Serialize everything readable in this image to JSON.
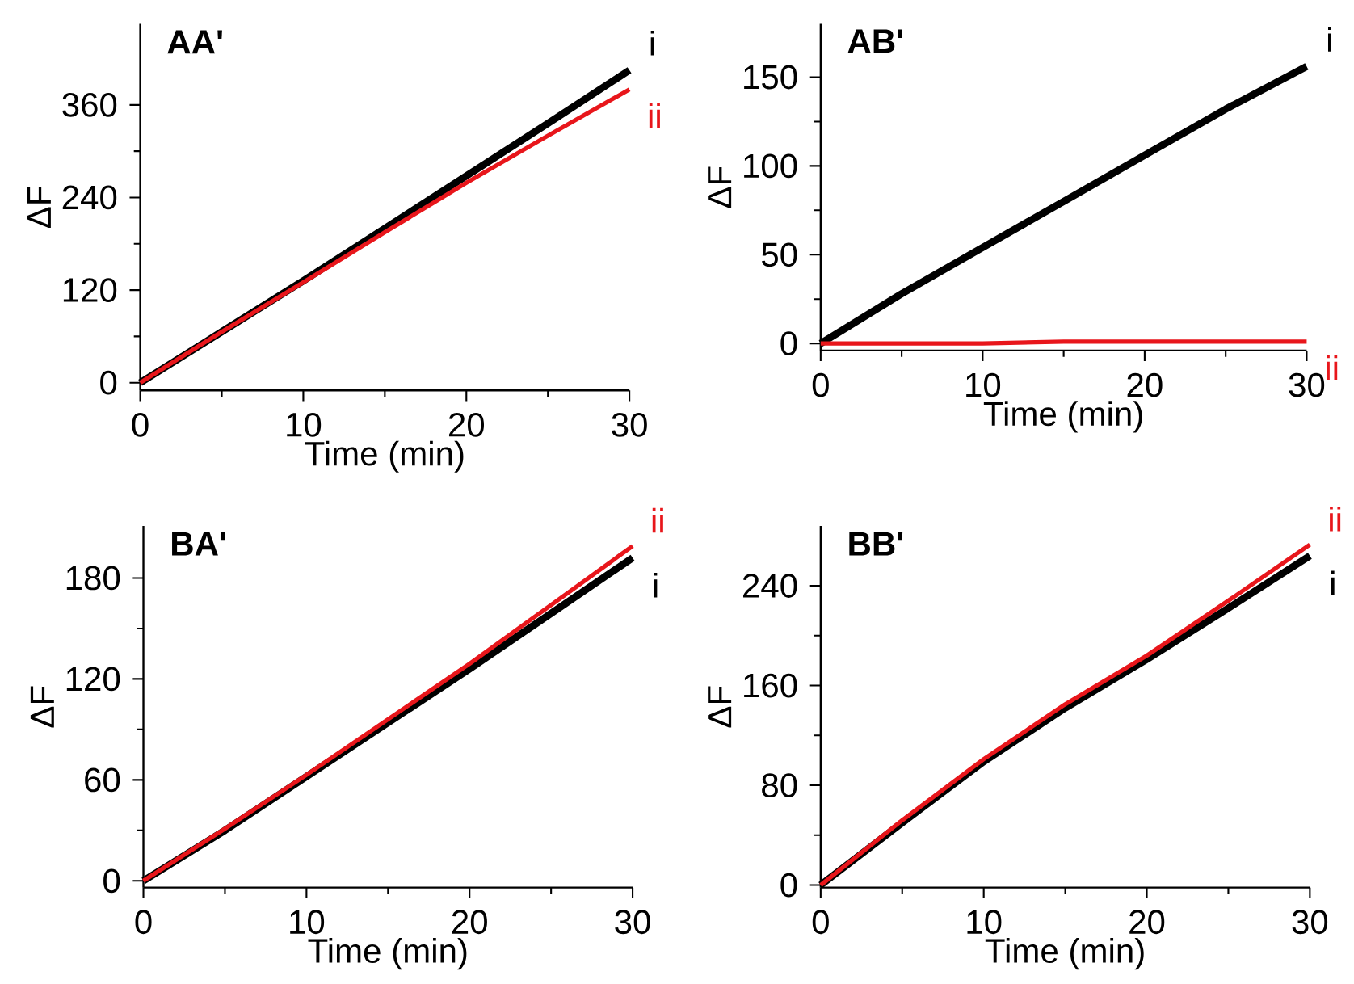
{
  "chart_data": [
    {
      "type": "line",
      "title": "AA'",
      "xlabel": "Time (min)",
      "ylabel": "ΔF",
      "x": [
        0,
        5,
        10,
        15,
        20,
        25,
        30
      ],
      "xlim": [
        0,
        30
      ],
      "ylim": [
        -10,
        465
      ],
      "xticks": [
        0,
        10,
        20,
        30
      ],
      "yticks": [
        0,
        120,
        240,
        360
      ],
      "series": [
        {
          "name": "i",
          "color": "#000000",
          "values": [
            0,
            66,
            132,
            200,
            268,
            336,
            405
          ]
        },
        {
          "name": "ii",
          "color": "#e8161b",
          "values": [
            0,
            66,
            130,
            195,
            259,
            320,
            380
          ]
        }
      ]
    },
    {
      "type": "line",
      "title": "AB'",
      "xlabel": "Time (min)",
      "ylabel": "ΔF",
      "x": [
        0,
        5,
        10,
        15,
        20,
        25,
        30
      ],
      "xlim": [
        0,
        30
      ],
      "ylim": [
        -4,
        180
      ],
      "xticks": [
        0,
        10,
        20,
        30
      ],
      "yticks": [
        0,
        50,
        100,
        150
      ],
      "series": [
        {
          "name": "i",
          "color": "#000000",
          "values": [
            0,
            28,
            54,
            80,
            106,
            132,
            156
          ]
        },
        {
          "name": "ii",
          "color": "#e8161b",
          "values": [
            0,
            0,
            0,
            1,
            1,
            1,
            1
          ]
        }
      ]
    },
    {
      "type": "line",
      "title": "BA'",
      "xlabel": "Time (min)",
      "ylabel": "ΔF",
      "x": [
        0,
        5,
        10,
        15,
        20,
        25,
        30
      ],
      "xlim": [
        0,
        30
      ],
      "ylim": [
        -4,
        211
      ],
      "xticks": [
        0,
        10,
        20,
        30
      ],
      "yticks": [
        0,
        60,
        120,
        180
      ],
      "series": [
        {
          "name": "i",
          "color": "#000000",
          "values": [
            0,
            30,
            62,
            94,
            126,
            159,
            192
          ]
        },
        {
          "name": "ii",
          "color": "#e8161b",
          "values": [
            0,
            31,
            63,
            96,
            129,
            164,
            199
          ]
        }
      ]
    },
    {
      "type": "line",
      "title": "BB'",
      "xlabel": "Time (min)",
      "ylabel": "ΔF",
      "x": [
        0,
        5,
        10,
        15,
        20,
        25,
        30
      ],
      "xlim": [
        0,
        30
      ],
      "ylim": [
        -2,
        288
      ],
      "xticks": [
        0,
        10,
        20,
        30
      ],
      "yticks": [
        0,
        80,
        160,
        240
      ],
      "series": [
        {
          "name": "i",
          "color": "#000000",
          "values": [
            0,
            50,
            99,
            142,
            181,
            222,
            264
          ]
        },
        {
          "name": "ii",
          "color": "#e8161b",
          "values": [
            0,
            52,
            101,
            145,
            184,
            228,
            273
          ]
        }
      ]
    }
  ]
}
